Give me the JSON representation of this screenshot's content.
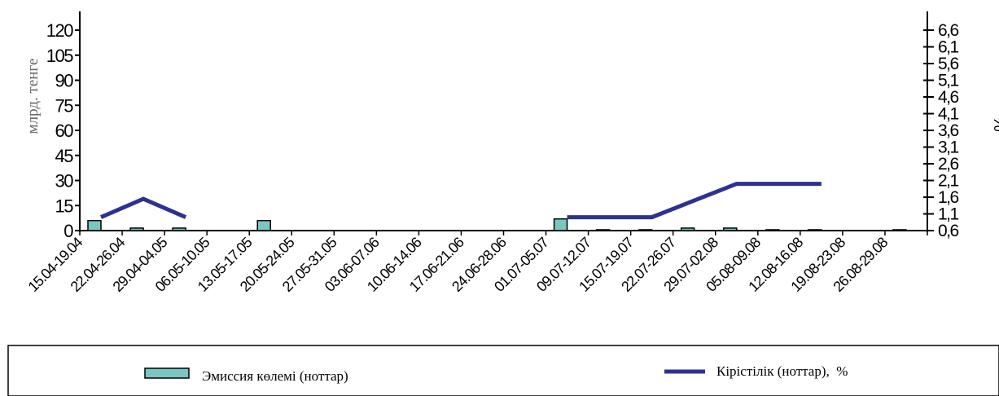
{
  "chart_data": {
    "type": "bar",
    "categories": [
      "15.04-19.04",
      "22.04-26.04",
      "29.04-04.05",
      "06.05-10.05",
      "13.05-17.05",
      "20.05-24.05",
      "27.05-31.05",
      "03.06-07.06",
      "10.06-14.06",
      "17.06-21.06",
      "24.06-28.06",
      "01.07-05.07",
      "09.07-12.07",
      "15.07-19.07",
      "22.07-26.07",
      "29.07-02.08",
      "05.08-09.08",
      "12.08-16.08",
      "19.08-23.08",
      "26.08-29.08"
    ],
    "series": [
      {
        "name": "Эмиссия көлемі (ноттар)",
        "type": "bar",
        "axis": "left",
        "color": "#79c6c3",
        "values": [
          6,
          1.5,
          1.5,
          0,
          6,
          0,
          0,
          0,
          0,
          0,
          0,
          7,
          0.5,
          0.5,
          1.5,
          1.5,
          0.5,
          0.5,
          0,
          0.5
        ]
      },
      {
        "name": "Кірістілік (ноттар),  %",
        "type": "line",
        "axis": "right",
        "color": "#2e3192",
        "values": [
          1.0,
          1.55,
          1.0,
          null,
          null,
          null,
          null,
          null,
          null,
          null,
          null,
          1.0,
          1.0,
          1.0,
          1.5,
          2.0,
          2.0,
          2.0,
          null,
          null
        ]
      }
    ],
    "ylabel": "млрд. тенге",
    "y2label": "%",
    "ylim": [
      0,
      120
    ],
    "yticks": [
      "0",
      "15",
      "30",
      "45",
      "60",
      "75",
      "90",
      "105",
      "120"
    ],
    "y2lim": [
      0.6,
      6.6
    ],
    "y2ticks": [
      "0,6",
      "1,1",
      "1,6",
      "2,1",
      "2,6",
      "3,1",
      "3,6",
      "4,1",
      "4,6",
      "5,1",
      "5,6",
      "6,1",
      "6,6"
    ],
    "grid": false,
    "legend_position": "bottom"
  }
}
